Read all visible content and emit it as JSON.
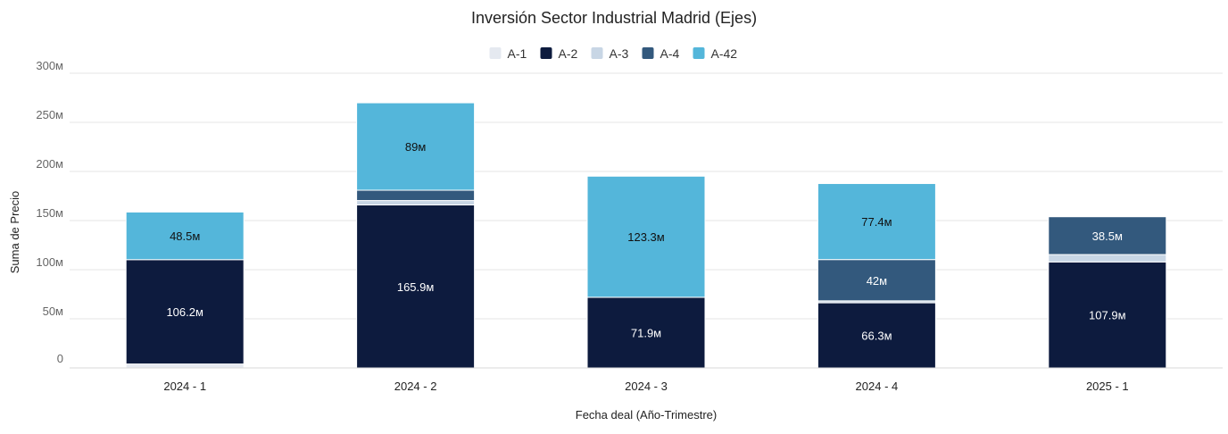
{
  "chart_data": {
    "type": "bar",
    "stacked": true,
    "title": "Inversión Sector Industrial Madrid (Ejes)",
    "xlabel": "Fecha deal (Año-Trimestre)",
    "ylabel": "Suma de Precio",
    "categories": [
      "2024 - 1",
      "2024 - 2",
      "2024 - 3",
      "2024 - 4",
      "2025 - 1"
    ],
    "ylim": [
      0,
      300
    ],
    "yticks": [
      0,
      50,
      100,
      150,
      200,
      250,
      300
    ],
    "ytick_labels": [
      "0",
      "50м",
      "100м",
      "150м",
      "200м",
      "250м",
      "300м"
    ],
    "grid": true,
    "legend_position": "top-center",
    "series": [
      {
        "name": "A-1",
        "color": "#E5E9F0",
        "values": [
          4.0,
          0,
          0,
          0,
          0
        ],
        "labels": [
          "",
          "",
          "",
          "",
          ""
        ],
        "label_color": "#222222"
      },
      {
        "name": "A-2",
        "color": "#0D1B3E",
        "values": [
          106.2,
          165.9,
          71.9,
          66.3,
          107.9
        ],
        "labels": [
          "106.2м",
          "165.9м",
          "71.9м",
          "66.3м",
          "107.9м"
        ],
        "label_color": "#ffffff"
      },
      {
        "name": "A-3",
        "color": "#C8D6E5",
        "values": [
          0,
          4.5,
          0,
          2.0,
          7.5
        ],
        "labels": [
          "",
          "",
          "",
          "",
          ""
        ],
        "label_color": "#222222"
      },
      {
        "name": "A-4",
        "color": "#33597D",
        "values": [
          0,
          10.5,
          0,
          42.0,
          38.5
        ],
        "labels": [
          "",
          "",
          "",
          "42м",
          "38.5м"
        ],
        "label_color": "#ffffff"
      },
      {
        "name": "A-42",
        "color": "#54B6DA",
        "values": [
          48.5,
          89.0,
          123.3,
          77.4,
          0
        ],
        "labels": [
          "48.5м",
          "89м",
          "123.3м",
          "77.4м",
          ""
        ],
        "label_color": "#111111"
      }
    ]
  }
}
